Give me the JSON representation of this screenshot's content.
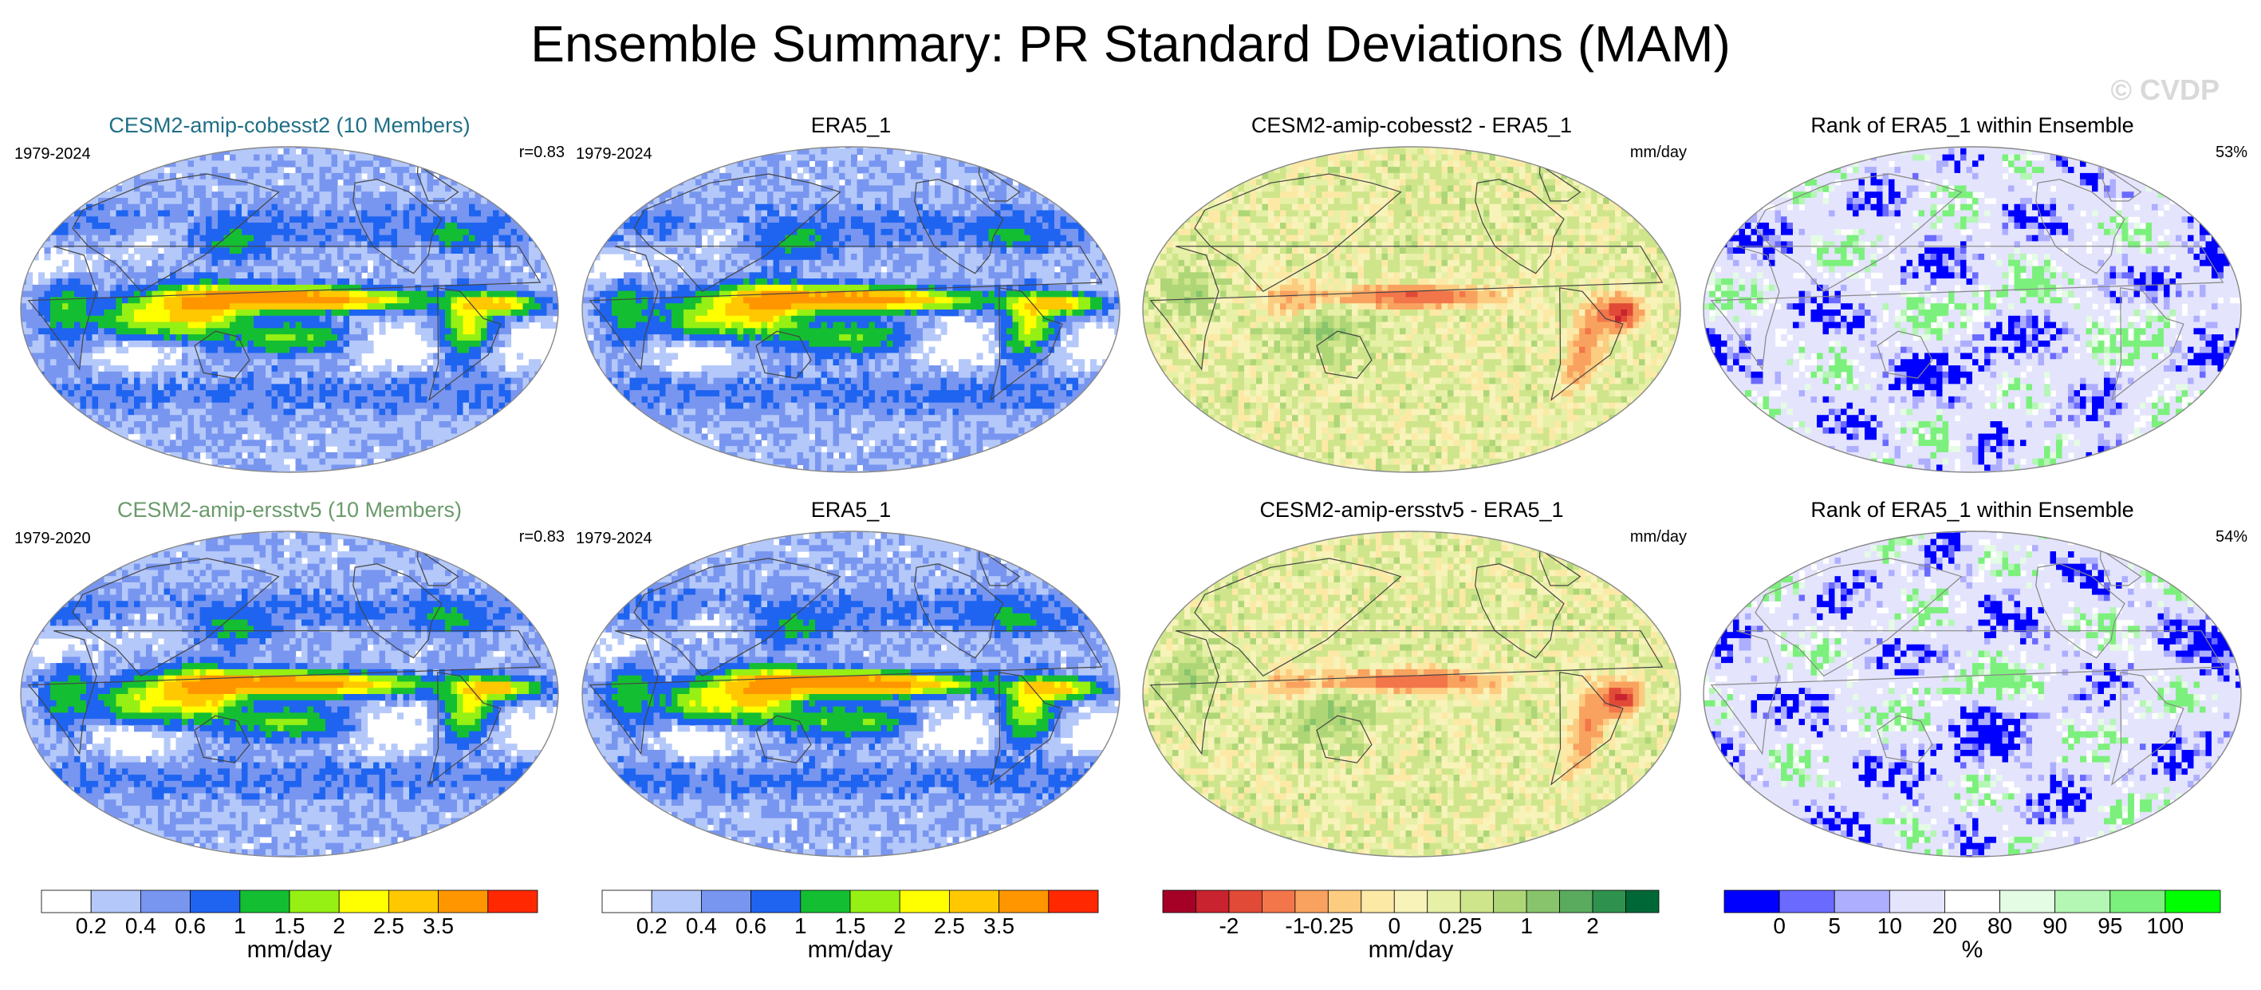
{
  "title": "Ensemble Summary: PR Standard Deviations (MAM)",
  "watermark": "© CVDP",
  "rows": [
    {
      "panels": [
        {
          "title": "CESM2-amip-cobesst2 (10 Members)",
          "title_color": "#1f6f86",
          "left_label": "1979-2024",
          "right_label": "r=0.83",
          "kind": "std"
        },
        {
          "title": "ERA5_1",
          "title_color": "#000000",
          "left_label": "1979-2024",
          "right_label": "",
          "kind": "std"
        },
        {
          "title": "CESM2-amip-cobesst2 - ERA5_1",
          "title_color": "#000000",
          "left_label": "",
          "right_label": "mm/day",
          "kind": "diff"
        },
        {
          "title": "Rank of ERA5_1 within Ensemble",
          "title_color": "#000000",
          "left_label": "",
          "right_label": "53%",
          "kind": "rank"
        }
      ]
    },
    {
      "panels": [
        {
          "title": "CESM2-amip-ersstv5 (10 Members)",
          "title_color": "#6b9a6b",
          "left_label": "1979-2020",
          "right_label": "r=0.83",
          "kind": "std"
        },
        {
          "title": "ERA5_1",
          "title_color": "#000000",
          "left_label": "1979-2024",
          "right_label": "",
          "kind": "std"
        },
        {
          "title": "CESM2-amip-ersstv5 - ERA5_1",
          "title_color": "#000000",
          "left_label": "",
          "right_label": "mm/day",
          "kind": "diff"
        },
        {
          "title": "Rank of ERA5_1 within Ensemble",
          "title_color": "#000000",
          "left_label": "",
          "right_label": "54%",
          "kind": "rank"
        }
      ]
    }
  ],
  "colorbars": [
    {
      "colors": [
        "#ffffff",
        "#b4c8fa",
        "#7896f0",
        "#1e64f0",
        "#14be32",
        "#96f014",
        "#ffff00",
        "#ffc800",
        "#ff9600",
        "#ff2800"
      ],
      "ticks": [
        "0.2",
        "0.4",
        "0.6",
        "1",
        "1.5",
        "2",
        "2.5",
        "3.5"
      ],
      "unit": "mm/day"
    },
    {
      "colors": [
        "#ffffff",
        "#b4c8fa",
        "#7896f0",
        "#1e64f0",
        "#14be32",
        "#96f014",
        "#ffff00",
        "#ffc800",
        "#ff9600",
        "#ff2800"
      ],
      "ticks": [
        "0.2",
        "0.4",
        "0.6",
        "1",
        "1.5",
        "2",
        "2.5",
        "3.5"
      ],
      "unit": "mm/day"
    },
    {
      "colors": [
        "#a50026",
        "#c8232f",
        "#e04a36",
        "#f2764a",
        "#f9a25f",
        "#fccc80",
        "#fde9a6",
        "#f7f3b9",
        "#e6f0a6",
        "#cfe58b",
        "#aed677",
        "#88c46b",
        "#5bab5f",
        "#2f914e",
        "#006837"
      ],
      "ticks": [
        "-2",
        "-1",
        "-0.25",
        "0",
        "0.25",
        "1",
        "2"
      ],
      "unit": "mm/day"
    },
    {
      "colors": [
        "#0000ff",
        "#6a6aff",
        "#aeaeff",
        "#e4e4fd",
        "#ffffff",
        "#e4fbe4",
        "#b4f6b4",
        "#7cf07c",
        "#00ff00"
      ],
      "ticks": [
        "0",
        "5",
        "10",
        "20",
        "80",
        "90",
        "95",
        "100"
      ],
      "unit": "%"
    }
  ],
  "chart_data": {
    "type": "heatmap",
    "title": "Ensemble Summary: PR Standard Deviations (MAM)",
    "variable": "PR standard deviation",
    "season": "MAM",
    "units": "mm/day",
    "std_levels": [
      0.2,
      0.4,
      0.6,
      1,
      1.5,
      2,
      2.5,
      3.5
    ],
    "diff_levels": [
      "-2",
      "-1",
      "-0.25",
      "0",
      "0.25",
      "1",
      "2"
    ],
    "rank_levels": [
      0,
      5,
      10,
      20,
      80,
      90,
      95,
      100
    ],
    "ensembles": [
      {
        "name": "CESM2-amip-cobesst2",
        "members": 10,
        "period": "1979-2024",
        "pattern_correlation": 0.83,
        "rank_summary_percent": 53
      },
      {
        "name": "CESM2-amip-ersstv5",
        "members": 10,
        "period": "1979-2020",
        "pattern_correlation": 0.83,
        "rank_summary_percent": 54
      }
    ],
    "observation": {
      "name": "ERA5_1",
      "period": "1979-2024"
    }
  }
}
